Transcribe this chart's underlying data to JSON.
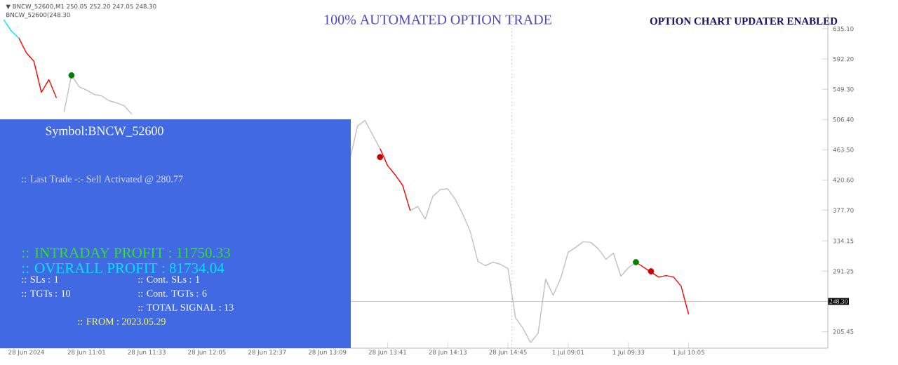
{
  "chart_data": {
    "type": "line",
    "title": "100% AUTOMATED OPTION TRADE",
    "subtitle": "OPTION CHART UPDATER ENABLED",
    "annotations": [
      "▼ BNCW_52600,M1  250.05 252.20 247.05 248.30",
      "BNCW_52600(248.30",
      "Symbol:BNCW_52600",
      ":: Last Trade -:- Sell Activated @ 280.77",
      ":: INTRADAY PROFIT : 11750.33",
      ":: OVERALL PROFIT : 81734.04",
      ":: SLs : 1",
      ":: Cont. SLs : 1",
      ":: TGTs : 10",
      ":: Cont. TGTs : 6",
      ":: TOTAL SIGNAL : 13",
      ":: FROM : 2023.05.29"
    ],
    "categories": [
      null,
      null,
      null,
      "28 Jun 2024",
      null,
      null,
      null,
      null,
      null,
      null,
      null,
      "28 Jun 11:01",
      null,
      null,
      null,
      null,
      null,
      null,
      null,
      "28 Jun 11:33",
      null,
      null,
      null,
      null,
      null,
      null,
      null,
      "28 Jun 12:05",
      null,
      null,
      null,
      null,
      null,
      null,
      null,
      "28 Jun 12:37",
      null,
      null,
      null,
      null,
      null,
      null,
      null,
      "28 Jun 13:09",
      null,
      null,
      null,
      null,
      null,
      null,
      null,
      "28 Jun 13:41",
      null,
      null,
      null,
      null,
      null,
      null,
      null,
      "28 Jun 14:13",
      null,
      null,
      null,
      null,
      null,
      null,
      null,
      "28 Jun 14:45",
      null,
      null,
      null,
      null,
      null,
      null,
      null,
      "1 Jul 09:01",
      null,
      null,
      null,
      null,
      null,
      null,
      null,
      "1 Jul 09:33",
      null,
      null,
      null,
      null,
      null,
      null,
      null,
      "1 Jul 10:05",
      null,
      null,
      null,
      null,
      null,
      null,
      null,
      null,
      null,
      null,
      null,
      null,
      null,
      null,
      null,
      null,
      null,
      null
    ],
    "ylim": [
      182,
      656
    ],
    "yticks": [
      {
        "value": 635.1,
        "label": "635.10"
      },
      {
        "value": 592.2,
        "label": "592.20"
      },
      {
        "value": 549.3,
        "label": "549.30"
      },
      {
        "value": 506.4,
        "label": "506.40"
      },
      {
        "value": 463.5,
        "label": "463.50"
      },
      {
        "value": 420.6,
        "label": "420.60"
      },
      {
        "value": 377.7,
        "label": "377.70"
      },
      {
        "value": 334.15,
        "label": "334.15"
      },
      {
        "value": 291.25,
        "label": "291.25"
      },
      {
        "value": 205.45,
        "label": "205.45"
      }
    ],
    "ref_lines": [
      {
        "axis": "y",
        "value": 248.3,
        "label": "248.30",
        "color": "#c8c8c8"
      }
    ],
    "series": [
      {
        "color": "#c0c0c0",
        "values": [
          null,
          null,
          null,
          null,
          null,
          null,
          null,
          null,
          517,
          569,
          553,
          548,
          542,
          540,
          533,
          530,
          526,
          514,
          null,
          null,
          null,
          null,
          null,
          null,
          null,
          null,
          null,
          null,
          null,
          null,
          null,
          null,
          null,
          null,
          null,
          null,
          null,
          null,
          null,
          null,
          null,
          null,
          null,
          null,
          null,
          null,
          450,
          497,
          505,
          485,
          465,
          null,
          null,
          null,
          377,
          383,
          365,
          397,
          407,
          408,
          393,
          372,
          347,
          305,
          299,
          304,
          301,
          295,
          225,
          210,
          190,
          203,
          280,
          257,
          281,
          318,
          325,
          333,
          332,
          323,
          308,
          317,
          284,
          296,
          304,
          null,
          null,
          null,
          null,
          null,
          null,
          null,
          null,
          null,
          null,
          null,
          null,
          null,
          null,
          null,
          null,
          null,
          null,
          null,
          null,
          null,
          null,
          null,
          null,
          null
        ]
      },
      {
        "color": "#ff0000",
        "values": [
          null,
          null,
          622,
          601,
          589,
          545,
          563,
          537,
          null,
          null,
          null,
          null,
          null,
          null,
          null,
          null,
          null,
          null,
          null,
          null,
          null,
          null,
          null,
          null,
          null,
          null,
          null,
          null,
          null,
          null,
          null,
          null,
          null,
          null,
          null,
          null,
          null,
          null,
          null,
          null,
          null,
          null,
          null,
          null,
          null,
          null,
          null,
          null,
          null,
          null,
          465,
          441,
          428,
          413,
          377,
          null,
          null,
          null,
          null,
          null,
          null,
          null,
          null,
          null,
          null,
          null,
          null,
          null,
          null,
          null,
          null,
          null,
          null,
          null,
          null,
          null,
          null,
          null,
          null,
          null,
          null,
          null,
          null,
          null,
          304,
          297,
          290,
          283,
          285,
          283,
          270,
          230,
          null,
          null,
          null,
          null,
          null,
          null,
          null,
          null,
          null,
          null,
          null,
          null,
          null,
          null,
          null,
          null,
          null,
          null
        ]
      },
      {
        "color": "#00e5ee",
        "values": [
          648,
          632,
          622,
          null,
          null,
          null,
          null,
          null,
          null,
          null,
          null,
          null,
          null,
          null,
          null,
          null,
          null,
          null,
          null,
          null,
          null,
          null,
          null,
          null,
          null,
          null,
          null,
          null,
          null,
          null,
          null,
          null,
          null,
          null,
          null,
          null,
          null,
          null,
          null,
          null,
          null,
          null,
          null,
          null,
          null,
          null,
          null,
          null,
          null,
          null,
          null,
          null,
          null,
          null,
          null,
          null,
          null,
          null,
          null,
          null,
          null,
          null,
          null,
          null,
          null,
          null,
          null,
          null,
          null,
          null,
          null,
          null,
          null,
          null,
          null,
          null,
          null,
          null,
          null,
          null,
          null,
          null,
          null,
          null,
          null,
          null,
          null,
          null,
          null,
          null,
          null,
          null,
          null,
          null,
          null,
          null,
          null,
          null,
          null,
          null,
          null,
          null,
          null,
          null,
          null,
          null,
          null,
          null,
          null,
          null
        ]
      },
      {
        "type": "scatter",
        "marker": "circle",
        "color": "#008000",
        "values": [
          null,
          null,
          null,
          null,
          null,
          null,
          null,
          null,
          null,
          569,
          null,
          null,
          null,
          null,
          null,
          null,
          null,
          null,
          null,
          null,
          null,
          null,
          null,
          null,
          null,
          null,
          null,
          null,
          null,
          null,
          null,
          null,
          null,
          null,
          null,
          null,
          null,
          null,
          null,
          null,
          null,
          null,
          null,
          null,
          null,
          null,
          null,
          null,
          null,
          null,
          null,
          null,
          null,
          null,
          null,
          null,
          null,
          null,
          null,
          null,
          null,
          null,
          null,
          null,
          null,
          null,
          null,
          null,
          null,
          null,
          null,
          null,
          null,
          null,
          null,
          null,
          null,
          null,
          null,
          null,
          null,
          null,
          null,
          null,
          304,
          null,
          null,
          null,
          null,
          null,
          null,
          null,
          null,
          null,
          null,
          null,
          null,
          null,
          null,
          null,
          null,
          null,
          null,
          null,
          null,
          null,
          null,
          null,
          null,
          null
        ]
      },
      {
        "type": "scatter",
        "marker": "circle",
        "color": "#cc0000",
        "values": [
          null,
          null,
          null,
          null,
          null,
          null,
          null,
          null,
          null,
          null,
          null,
          null,
          null,
          null,
          null,
          null,
          null,
          null,
          null,
          null,
          null,
          null,
          null,
          null,
          null,
          null,
          null,
          null,
          null,
          null,
          null,
          null,
          null,
          null,
          null,
          null,
          null,
          null,
          null,
          null,
          null,
          null,
          null,
          null,
          null,
          null,
          null,
          null,
          null,
          null,
          453,
          null,
          null,
          null,
          null,
          null,
          null,
          null,
          null,
          null,
          null,
          null,
          null,
          null,
          null,
          null,
          null,
          null,
          null,
          null,
          null,
          null,
          null,
          null,
          null,
          null,
          null,
          null,
          null,
          null,
          null,
          null,
          null,
          null,
          null,
          null,
          291,
          null,
          null,
          null,
          null,
          null,
          null,
          null,
          null,
          null,
          null,
          null,
          null,
          null,
          null,
          null,
          null,
          null,
          null,
          null,
          null,
          null,
          null,
          null
        ]
      }
    ]
  }
}
